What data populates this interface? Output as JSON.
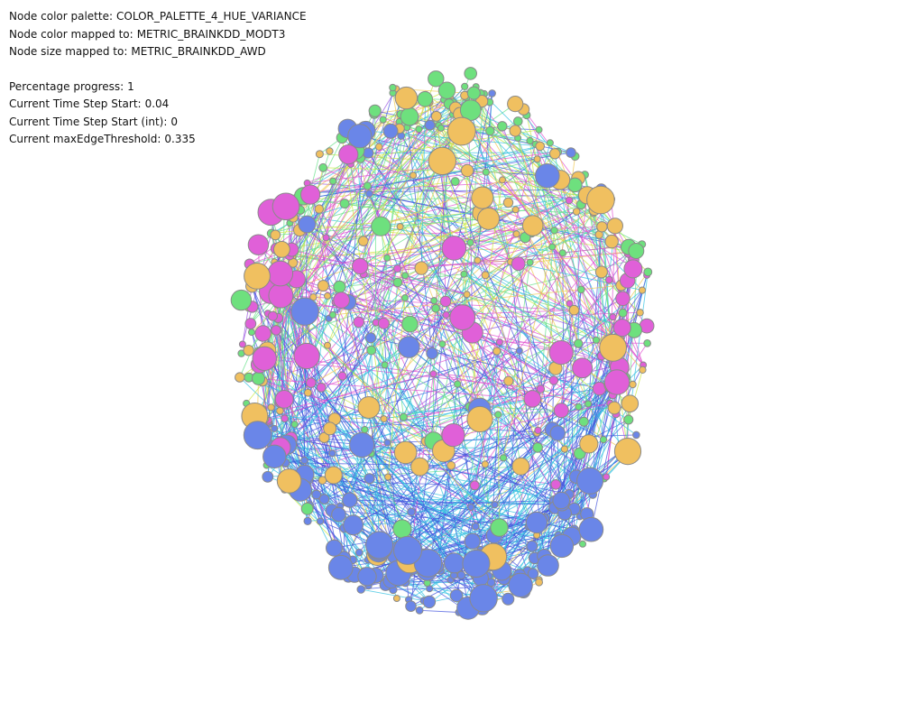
{
  "info": {
    "palette_label": "Node color palette:",
    "palette_value": "COLOR_PALETTE_4_HUE_VARIANCE",
    "color_map_label": "Node color mapped to:",
    "color_map_value": "METRIC_BRAINKDD_MODT3",
    "size_map_label": "Node size mapped to:",
    "size_map_value": "METRIC_BRAINKDD_AWD",
    "progress_label": "Percentage progress:",
    "progress_value": "1",
    "time_start_label": "Current Time Step Start:",
    "time_start_value": "0.04",
    "time_start_int_label": "Current Time Step Start (int):",
    "time_start_int_value": "0",
    "max_edge_label": "Current maxEdgeThreshold:",
    "max_edge_value": "0.335"
  },
  "graph": {
    "node_palette": [
      "#6a86e8",
      "#6ee07e",
      "#f0c060",
      "#e060d8"
    ],
    "edge_palette": [
      "#4455dd",
      "#33c0e0",
      "#66e088",
      "#c8e840",
      "#f0c850",
      "#e050d0",
      "#9a55e0"
    ],
    "node_stroke": "#8a8a8a"
  }
}
